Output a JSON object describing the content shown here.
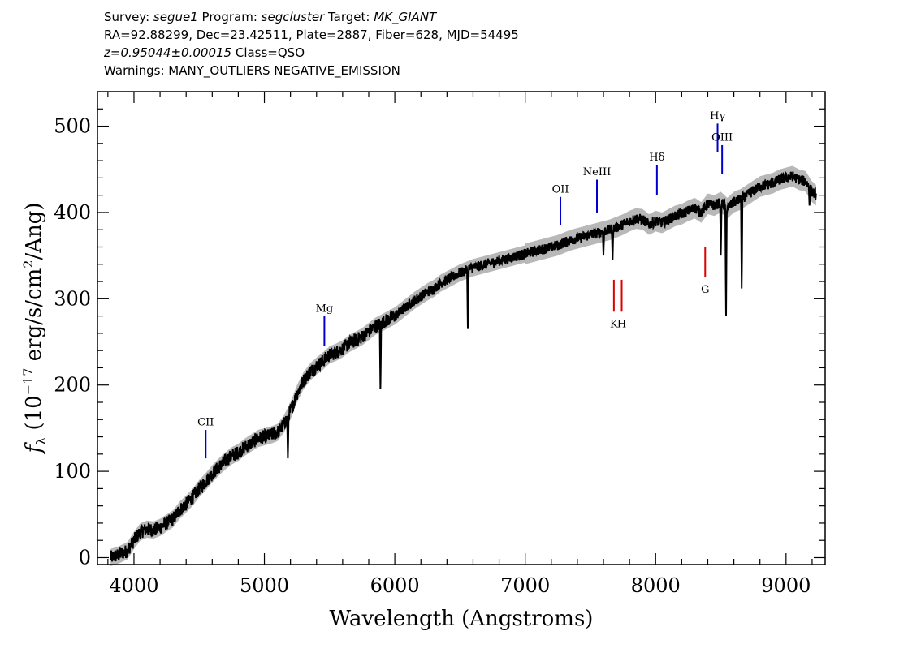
{
  "header": {
    "line1": {
      "survey_label": "Survey: ",
      "survey": "segue1",
      "program_label": " Program: ",
      "program": "segcluster",
      "target_label": " Target: ",
      "target": "MK_GIANT"
    },
    "line2": "RA=92.88299, Dec=23.42511, Plate=2887, Fiber=628, MJD=54495",
    "line3": {
      "z": "z=0.95044±0.00015",
      "class": " Class=QSO"
    },
    "line4": "Warnings: MANY_OUTLIERS NEGATIVE_EMISSION"
  },
  "chart_data": {
    "type": "line",
    "xlabel": "Wavelength (Angstroms)",
    "ylabel": "f_λ (10^-17 erg/s/cm^2/Ang)",
    "xlim": [
      3720,
      9300
    ],
    "ylim": [
      -8,
      540
    ],
    "x_ticks": [
      4000,
      5000,
      6000,
      7000,
      8000,
      9000
    ],
    "y_ticks": [
      0,
      100,
      200,
      300,
      400,
      500
    ],
    "colors": {
      "spectrum": "#000000",
      "error_band": "#b8b8b8",
      "emission": "#0000cc",
      "absorption": "#dd0000"
    },
    "series": [
      {
        "x": [
          3820,
          3880,
          3950,
          4000,
          4050,
          4100,
          4150,
          4200,
          4250,
          4300,
          4350,
          4400,
          4450,
          4500,
          4550,
          4600,
          4650,
          4700,
          4750,
          4800,
          4850,
          4900,
          4950,
          5000,
          5050,
          5100,
          5150,
          5200,
          5250,
          5300,
          5350,
          5400,
          5450,
          5500,
          5550,
          5600,
          5650,
          5700,
          5750,
          5800,
          5850,
          5900,
          5950,
          6000,
          6050,
          6100,
          6150,
          6200,
          6250,
          6300,
          6350,
          6400,
          6450,
          6500,
          6550,
          6600,
          6650,
          6700,
          6750,
          6800,
          6850,
          6900,
          6950,
          7000,
          7050,
          7100,
          7150,
          7200,
          7250,
          7300,
          7350,
          7400,
          7450,
          7500,
          7550,
          7600,
          7650,
          7700,
          7750,
          7800,
          7850,
          7900,
          7950,
          8000,
          8050,
          8100,
          8150,
          8200,
          8250,
          8300,
          8350,
          8400,
          8450,
          8500,
          8550,
          8600,
          8650,
          8700,
          8750,
          8800,
          8850,
          8900,
          8950,
          9000,
          9050,
          9100,
          9150,
          9200,
          9230
        ],
        "y": [
          0,
          3,
          8,
          20,
          30,
          33,
          32,
          35,
          40,
          45,
          55,
          62,
          70,
          80,
          88,
          97,
          105,
          112,
          118,
          122,
          128,
          133,
          138,
          140,
          142,
          145,
          155,
          170,
          190,
          205,
          215,
          222,
          228,
          235,
          238,
          242,
          248,
          252,
          256,
          262,
          268,
          272,
          276,
          280,
          286,
          292,
          298,
          303,
          308,
          312,
          318,
          322,
          326,
          330,
          333,
          336,
          338,
          340,
          342,
          344,
          346,
          348,
          350,
          352,
          354,
          356,
          358,
          360,
          362,
          365,
          368,
          370,
          372,
          374,
          376,
          378,
          380,
          383,
          386,
          390,
          393,
          392,
          386,
          390,
          388,
          392,
          396,
          398,
          402,
          405,
          400,
          410,
          408,
          412,
          405,
          412,
          415,
          420,
          425,
          430,
          432,
          434,
          438,
          440,
          442,
          438,
          436,
          424,
          420
        ],
        "outliers": [
          {
            "x": 5180,
            "y": 115
          },
          {
            "x": 5890,
            "y": 195
          },
          {
            "x": 6560,
            "y": 265
          },
          {
            "x": 7600,
            "y": 350
          },
          {
            "x": 7670,
            "y": 345
          },
          {
            "x": 8500,
            "y": 350
          },
          {
            "x": 8540,
            "y": 280
          },
          {
            "x": 8660,
            "y": 312
          },
          {
            "x": 9180,
            "y": 408
          }
        ]
      }
    ],
    "emission_lines": [
      {
        "label": "CII",
        "x": 4550,
        "y0": 115,
        "y1": 148,
        "label_y": 153
      },
      {
        "label": "Mg",
        "x": 5460,
        "y0": 245,
        "y1": 280,
        "label_y": 285
      },
      {
        "label": "OII",
        "x": 7270,
        "y0": 385,
        "y1": 418,
        "label_y": 423
      },
      {
        "label": "NeIII",
        "x": 7550,
        "y0": 400,
        "y1": 438,
        "label_y": 443
      },
      {
        "label": "Hδ",
        "x": 8010,
        "y0": 420,
        "y1": 455,
        "label_y": 460
      },
      {
        "label": "Hγ",
        "x": 8475,
        "y0": 470,
        "y1": 503,
        "label_y": 508
      },
      {
        "label": "OIII",
        "x": 8510,
        "y0": 445,
        "y1": 478,
        "label_y": 483
      }
    ],
    "absorption_lines": [
      {
        "label": "K",
        "x": 7680,
        "y0": 285,
        "y1": 322,
        "label_y": 278
      },
      {
        "label": "H",
        "x": 7740,
        "y0": 285,
        "y1": 322,
        "label_y": 278
      },
      {
        "label": "G",
        "x": 8380,
        "y0": 325,
        "y1": 360,
        "label_y": 318
      }
    ]
  }
}
